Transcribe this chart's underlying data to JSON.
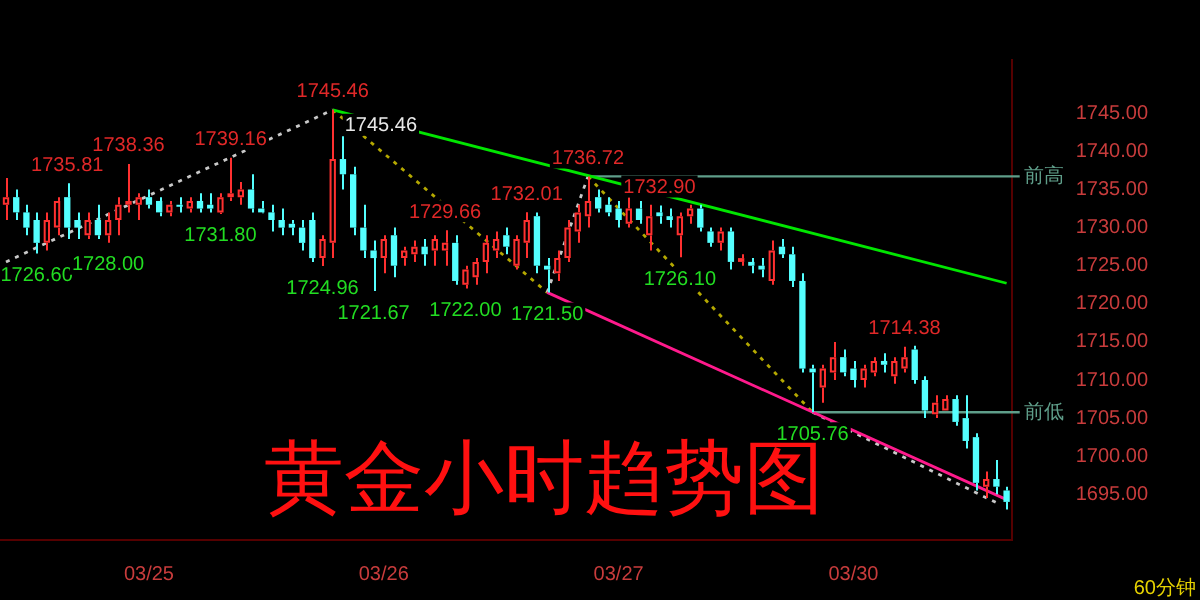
{
  "chart_data": {
    "type": "candlestick",
    "title": "黄金小时趋势图",
    "categories": [
      null,
      null,
      null,
      null,
      null,
      null,
      null,
      null,
      null,
      null,
      null,
      null,
      null,
      null,
      "03/25",
      null,
      null,
      null,
      null,
      null,
      null,
      null,
      null,
      null,
      null,
      null,
      null,
      null,
      null,
      null,
      null,
      null,
      null,
      null,
      null,
      null,
      null,
      "03/26",
      null,
      null,
      null,
      null,
      null,
      null,
      null,
      null,
      null,
      null,
      null,
      null,
      null,
      null,
      null,
      null,
      null,
      null,
      null,
      null,
      null,
      null,
      "03/27",
      null,
      null,
      null,
      null,
      null,
      null,
      null,
      null,
      null,
      null,
      null,
      null,
      null,
      null,
      null,
      null,
      null,
      null,
      null,
      null,
      null,
      null,
      "03/30",
      null,
      null,
      null,
      null,
      null,
      null,
      null,
      null,
      null,
      null,
      null,
      null,
      null,
      null,
      null
    ],
    "ohlc": [
      [
        1733,
        1736.5,
        1731,
        1734
      ],
      [
        1734,
        1735,
        1731,
        1732
      ],
      [
        1732,
        1733,
        1729,
        1730
      ],
      [
        1731,
        1732,
        1726.6,
        1728
      ],
      [
        1728,
        1732,
        1727,
        1731
      ],
      [
        1730,
        1734,
        1729,
        1733.5
      ],
      [
        1734,
        1735.81,
        1728.5,
        1730
      ],
      [
        1731,
        1732,
        1728.5,
        1730
      ],
      [
        1729,
        1732,
        1728.5,
        1731
      ],
      [
        1731,
        1733,
        1728.5,
        1729
      ],
      [
        1729,
        1732,
        1728,
        1731
      ],
      [
        1731,
        1734,
        1729,
        1733
      ],
      [
        1733,
        1738.36,
        1732,
        1733.5
      ],
      [
        1733,
        1734.5,
        1731,
        1734
      ],
      [
        1734,
        1735,
        1732.5,
        1733
      ],
      [
        1733.5,
        1734,
        1731.5,
        1732
      ],
      [
        1732,
        1733.5,
        1731.5,
        1733
      ],
      [
        1733,
        1734,
        1732,
        1732.8
      ],
      [
        1732.5,
        1734,
        1732,
        1733.5
      ],
      [
        1733.5,
        1734.5,
        1732,
        1732.5
      ],
      [
        1733,
        1734.5,
        1732,
        1732.5
      ],
      [
        1732,
        1734.5,
        1731.8,
        1734
      ],
      [
        1734,
        1739.16,
        1733.5,
        1734.5
      ],
      [
        1734,
        1736,
        1733,
        1735
      ],
      [
        1735,
        1737,
        1732,
        1732.5
      ],
      [
        1732.5,
        1733.5,
        1731.9,
        1732
      ],
      [
        1732,
        1733,
        1729.5,
        1731
      ],
      [
        1731,
        1732.5,
        1729,
        1730
      ],
      [
        1730.5,
        1731,
        1729,
        1730
      ],
      [
        1730,
        1731,
        1727,
        1728
      ],
      [
        1731,
        1732,
        1725.5,
        1726
      ],
      [
        1726,
        1729,
        1724.96,
        1728.5
      ],
      [
        1728,
        1745.46,
        1726,
        1739
      ],
      [
        1739,
        1742,
        1735,
        1737
      ],
      [
        1737,
        1738,
        1729,
        1730
      ],
      [
        1730,
        1733,
        1726,
        1727
      ],
      [
        1727,
        1728.3,
        1721.67,
        1726
      ],
      [
        1726,
        1729,
        1724,
        1728.5
      ],
      [
        1729,
        1730,
        1723.5,
        1725
      ],
      [
        1726,
        1727.5,
        1725,
        1727
      ],
      [
        1726.5,
        1728.3,
        1725.5,
        1727.5
      ],
      [
        1727.5,
        1728.5,
        1725,
        1726.5
      ],
      [
        1727,
        1729,
        1725,
        1728.5
      ],
      [
        1727,
        1729.66,
        1725,
        1728
      ],
      [
        1728,
        1729,
        1722.5,
        1723
      ],
      [
        1722.5,
        1725,
        1722,
        1724.5
      ],
      [
        1723.5,
        1726,
        1722.5,
        1725.5
      ],
      [
        1725.5,
        1729,
        1724,
        1728
      ],
      [
        1727,
        1729.5,
        1726,
        1728.5
      ],
      [
        1729,
        1730,
        1726.5,
        1727.5
      ],
      [
        1725,
        1729,
        1724.5,
        1728.5
      ],
      [
        1728,
        1732.01,
        1726,
        1731
      ],
      [
        1731.5,
        1732,
        1724,
        1725
      ],
      [
        1725,
        1726,
        1721.5,
        1724.5
      ],
      [
        1724,
        1727,
        1723,
        1726
      ],
      [
        1726,
        1731,
        1725.5,
        1730
      ],
      [
        1729.5,
        1733,
        1728,
        1732
      ],
      [
        1731.5,
        1736.72,
        1730,
        1733.5
      ],
      [
        1734,
        1735,
        1732,
        1732.5
      ],
      [
        1733,
        1734,
        1731.5,
        1732
      ],
      [
        1732.5,
        1733.5,
        1730,
        1731
      ],
      [
        1730.5,
        1734,
        1730,
        1732.5
      ],
      [
        1732.5,
        1733.5,
        1730.5,
        1731
      ],
      [
        1729,
        1733,
        1727,
        1731.5
      ],
      [
        1732,
        1732.9,
        1730.5,
        1731.5
      ],
      [
        1731.5,
        1732.5,
        1730,
        1731
      ],
      [
        1729,
        1732,
        1726.1,
        1731.5
      ],
      [
        1731.5,
        1733,
        1730.5,
        1732.5
      ],
      [
        1732.5,
        1733,
        1729.5,
        1730
      ],
      [
        1729.5,
        1730,
        1727.5,
        1728
      ],
      [
        1728,
        1730,
        1727,
        1729.5
      ],
      [
        1729.5,
        1730,
        1724.5,
        1725.5
      ],
      [
        1725.5,
        1726.5,
        1725,
        1726
      ],
      [
        1725.5,
        1726,
        1724,
        1725
      ],
      [
        1725,
        1726,
        1723.5,
        1724.5
      ],
      [
        1723,
        1728.3,
        1722.5,
        1727
      ],
      [
        1727.5,
        1728.5,
        1726,
        1726.5
      ],
      [
        1726.5,
        1727.5,
        1722.2,
        1723
      ],
      [
        1723,
        1724,
        1711,
        1711.5
      ],
      [
        1711.5,
        1712,
        1705.76,
        1711
      ],
      [
        1709,
        1712,
        1707,
        1711.5
      ],
      [
        1711,
        1715,
        1710,
        1713
      ],
      [
        1713,
        1714,
        1710.5,
        1711
      ],
      [
        1711.5,
        1712.5,
        1709,
        1710
      ],
      [
        1710,
        1712,
        1709,
        1711.5
      ],
      [
        1711,
        1713,
        1710.5,
        1712.5
      ],
      [
        1712.5,
        1713.5,
        1711,
        1712
      ],
      [
        1710.5,
        1713,
        1709.5,
        1712.5
      ],
      [
        1711.5,
        1714.38,
        1711,
        1713
      ],
      [
        1714,
        1714.5,
        1709.5,
        1710
      ],
      [
        1710,
        1710.5,
        1705,
        1706
      ],
      [
        1705.5,
        1708,
        1705,
        1707
      ],
      [
        1706,
        1708,
        1706,
        1707.5
      ],
      [
        1707.5,
        1708,
        1704,
        1704.5
      ],
      [
        1705,
        1708,
        1701,
        1702
      ],
      [
        1702.5,
        1703,
        1695.5,
        1696.5
      ],
      [
        1696,
        1698,
        1694.5,
        1697
      ],
      [
        1697,
        1699.5,
        1695,
        1696
      ],
      [
        1695.5,
        1696,
        1693,
        1694
      ]
    ],
    "series": [
      {
        "type": "line",
        "color": "#00e600",
        "line_style": "solid",
        "values": [
          null,
          null,
          null,
          null,
          null,
          null,
          null,
          null,
          null,
          null,
          null,
          null,
          null,
          null,
          null,
          null,
          null,
          null,
          null,
          null,
          null,
          null,
          null,
          null,
          null,
          null,
          null,
          null,
          null,
          null,
          null,
          null,
          1745.46,
          null,
          null,
          null,
          null,
          null,
          null,
          null,
          null,
          null,
          null,
          null,
          null,
          null,
          null,
          null,
          null,
          null,
          null,
          null,
          null,
          null,
          null,
          null,
          null,
          null,
          null,
          null,
          null,
          null,
          null,
          null,
          null,
          null,
          null,
          null,
          null,
          null,
          null,
          null,
          null,
          null,
          null,
          null,
          null,
          null,
          null,
          null,
          null,
          null,
          null,
          null,
          null,
          null,
          null,
          null,
          null,
          null,
          null,
          null,
          null,
          null,
          null,
          null,
          null,
          null,
          1722.7
        ],
        "value_labels": [
          null,
          null,
          null,
          null,
          null,
          null,
          null,
          null,
          null,
          null,
          null,
          null,
          null,
          null,
          null,
          null,
          null,
          null,
          null,
          null,
          null,
          null,
          null,
          null,
          null,
          null,
          null,
          null,
          null,
          null,
          null,
          null,
          "1745.46",
          null,
          null,
          null,
          null,
          null,
          null,
          null,
          null,
          null,
          null,
          null,
          null,
          null,
          null,
          null,
          null,
          null,
          null,
          null,
          null,
          null,
          null,
          null,
          null,
          null,
          null,
          null,
          null,
          null,
          null,
          null,
          null,
          null,
          null,
          null,
          null,
          null,
          null,
          null,
          null,
          null,
          null,
          null,
          null,
          null,
          null,
          null,
          null,
          null,
          null,
          null,
          null,
          null,
          null,
          null,
          null,
          null,
          null,
          null,
          null,
          null,
          null,
          null,
          null,
          null,
          null
        ]
      },
      {
        "type": "line",
        "color": "#ff1a8c",
        "line_style": "solid",
        "values": [
          null,
          null,
          null,
          null,
          null,
          null,
          null,
          null,
          null,
          null,
          null,
          null,
          null,
          null,
          null,
          null,
          null,
          null,
          null,
          null,
          null,
          null,
          null,
          null,
          null,
          null,
          null,
          null,
          null,
          null,
          null,
          null,
          null,
          null,
          null,
          null,
          null,
          null,
          null,
          null,
          null,
          null,
          null,
          null,
          null,
          null,
          null,
          null,
          null,
          null,
          null,
          null,
          null,
          1721.5,
          null,
          null,
          null,
          null,
          null,
          null,
          null,
          null,
          null,
          null,
          null,
          null,
          null,
          null,
          null,
          null,
          null,
          null,
          null,
          null,
          null,
          null,
          null,
          null,
          null,
          null,
          null,
          null,
          null,
          null,
          null,
          null,
          null,
          null,
          null,
          null,
          null,
          null,
          null,
          null,
          null,
          null,
          null,
          null,
          1694.3
        ]
      },
      {
        "type": "line",
        "color": "#c8c8c8",
        "line_style": "dotted",
        "values": [
          1725.5,
          null,
          null,
          null,
          null,
          null,
          null,
          null,
          null,
          null,
          null,
          null,
          null,
          null,
          null,
          null,
          null,
          null,
          null,
          null,
          null,
          null,
          null,
          null,
          null,
          null,
          null,
          null,
          null,
          null,
          null,
          null,
          1745.46,
          null,
          null,
          null,
          null,
          null,
          null,
          null,
          null,
          null,
          null,
          null,
          null,
          null,
          null,
          null,
          null,
          null,
          null,
          null,
          null,
          null,
          null,
          null,
          null,
          null,
          null,
          null,
          null,
          null,
          null,
          null,
          null,
          null,
          null,
          null,
          null,
          null,
          null,
          null,
          null,
          null,
          null,
          null,
          null,
          null,
          null,
          null,
          null,
          null,
          null,
          null,
          null,
          null,
          null,
          null,
          null,
          null,
          null,
          null,
          null,
          null,
          null,
          null,
          null,
          null,
          null
        ]
      },
      {
        "type": "line",
        "color": "#c8c8c8",
        "line_style": "dotted",
        "values": [
          null,
          null,
          null,
          null,
          null,
          null,
          null,
          null,
          null,
          null,
          null,
          null,
          null,
          null,
          null,
          null,
          null,
          null,
          null,
          null,
          null,
          null,
          null,
          null,
          null,
          null,
          null,
          null,
          null,
          null,
          null,
          null,
          null,
          null,
          null,
          null,
          null,
          null,
          null,
          null,
          null,
          null,
          null,
          null,
          null,
          null,
          null,
          null,
          null,
          null,
          null,
          null,
          null,
          1721.5,
          null,
          null,
          null,
          1736.72,
          null,
          null,
          null,
          null,
          null,
          null,
          null,
          null,
          null,
          null,
          null,
          null,
          null,
          null,
          null,
          null,
          null,
          null,
          null,
          null,
          null,
          null,
          null,
          null,
          null,
          null,
          null,
          null,
          null,
          null,
          null,
          null,
          null,
          null,
          null,
          null,
          null,
          null,
          null,
          null,
          null
        ]
      },
      {
        "type": "line",
        "color": "#c8c8c8",
        "line_style": "dotted",
        "values": [
          null,
          null,
          null,
          null,
          null,
          null,
          null,
          null,
          null,
          null,
          null,
          null,
          null,
          null,
          null,
          null,
          null,
          null,
          null,
          null,
          null,
          null,
          null,
          null,
          null,
          null,
          null,
          null,
          null,
          null,
          null,
          null,
          null,
          null,
          null,
          null,
          null,
          null,
          null,
          null,
          null,
          null,
          null,
          null,
          null,
          null,
          null,
          null,
          null,
          null,
          null,
          null,
          null,
          null,
          null,
          null,
          null,
          null,
          null,
          null,
          null,
          null,
          null,
          null,
          null,
          null,
          null,
          null,
          null,
          null,
          null,
          null,
          null,
          null,
          null,
          null,
          null,
          null,
          null,
          1705.76,
          null,
          null,
          null,
          null,
          null,
          null,
          null,
          null,
          null,
          null,
          null,
          null,
          null,
          null,
          null,
          null,
          null,
          1693.9,
          null
        ]
      },
      {
        "type": "line",
        "color": "#b4a800",
        "line_style": "dotted",
        "values": [
          null,
          null,
          null,
          null,
          null,
          null,
          null,
          null,
          null,
          null,
          null,
          null,
          null,
          null,
          null,
          null,
          null,
          null,
          null,
          null,
          null,
          null,
          null,
          null,
          null,
          null,
          null,
          null,
          null,
          null,
          null,
          null,
          1745.46,
          null,
          null,
          null,
          null,
          null,
          null,
          null,
          null,
          null,
          null,
          null,
          null,
          null,
          null,
          null,
          null,
          null,
          null,
          null,
          null,
          1721.5,
          null,
          null,
          null,
          null,
          null,
          null,
          null,
          null,
          null,
          null,
          null,
          null,
          null,
          null,
          null,
          null,
          null,
          null,
          null,
          null,
          null,
          null,
          null,
          null,
          null,
          null,
          null,
          null,
          null,
          null,
          null,
          null,
          null,
          null,
          null,
          null,
          null,
          null,
          null,
          null,
          null,
          null,
          null,
          null,
          null
        ]
      },
      {
        "type": "line",
        "color": "#b4a800",
        "line_style": "dotted",
        "values": [
          null,
          null,
          null,
          null,
          null,
          null,
          null,
          null,
          null,
          null,
          null,
          null,
          null,
          null,
          null,
          null,
          null,
          null,
          null,
          null,
          null,
          null,
          null,
          null,
          null,
          null,
          null,
          null,
          null,
          null,
          null,
          null,
          null,
          null,
          null,
          null,
          null,
          null,
          null,
          null,
          null,
          null,
          null,
          null,
          null,
          null,
          null,
          null,
          null,
          null,
          null,
          null,
          null,
          null,
          null,
          null,
          null,
          1736.72,
          null,
          null,
          null,
          null,
          null,
          null,
          null,
          null,
          null,
          null,
          null,
          null,
          null,
          null,
          null,
          null,
          null,
          null,
          null,
          null,
          null,
          1705.76,
          null,
          null,
          null,
          null,
          null,
          null,
          null,
          null,
          null,
          null,
          null,
          null,
          null,
          null,
          null,
          null,
          null,
          null,
          null
        ]
      }
    ],
    "ref_lines": [
      {
        "axis": "y",
        "value": 1736.72,
        "label": "前高",
        "color": "#5f9e8a"
      },
      {
        "axis": "y",
        "value": 1705.76,
        "label": "前低",
        "color": "#5f9e8a"
      }
    ],
    "annotations": [
      {
        "text": "1745.46",
        "y": 1745.46
      },
      {
        "text": "1735.81",
        "y": 1735.81
      },
      {
        "text": "1738.36",
        "y": 1738.36
      },
      {
        "text": "1739.16",
        "y": 1739.16
      },
      {
        "text": "1736.72",
        "y": 1736.72
      },
      {
        "text": "1729.66",
        "y": 1729.66
      },
      {
        "text": "1732.01",
        "y": 1732.01
      },
      {
        "text": "1732.90",
        "y": 1732.9
      },
      {
        "text": "1714.38",
        "y": 1714.38
      },
      {
        "text": "1726.60",
        "y": 1726.6
      },
      {
        "text": "1728.00",
        "y": 1728
      },
      {
        "text": "1731.80",
        "y": 1731.8
      },
      {
        "text": "1724.96",
        "y": 1724.96
      },
      {
        "text": "1721.67",
        "y": 1721.67
      },
      {
        "text": "1722.00",
        "y": 1722
      },
      {
        "text": "1721.50",
        "y": 1721.5
      },
      {
        "text": "1726.10",
        "y": 1726.1
      },
      {
        "text": "1705.76",
        "y": 1705.76
      },
      "60分钟"
    ],
    "ylim": [
      1689,
      1752
    ],
    "yticks": [
      {
        "value": 1695,
        "label": "1695.00"
      },
      {
        "value": 1700,
        "label": "1700.00"
      },
      {
        "value": 1705,
        "label": "1705.00"
      },
      {
        "value": 1710,
        "label": "1710.00"
      },
      {
        "value": 1715,
        "label": "1715.00"
      },
      {
        "value": 1720,
        "label": "1720.00"
      },
      {
        "value": 1725,
        "label": "1725.00"
      },
      {
        "value": 1730,
        "label": "1730.00"
      },
      {
        "value": 1735,
        "label": "1735.00"
      },
      {
        "value": 1740,
        "label": "1740.00"
      },
      {
        "value": 1745,
        "label": "1745.00"
      }
    ],
    "legend": false
  }
}
